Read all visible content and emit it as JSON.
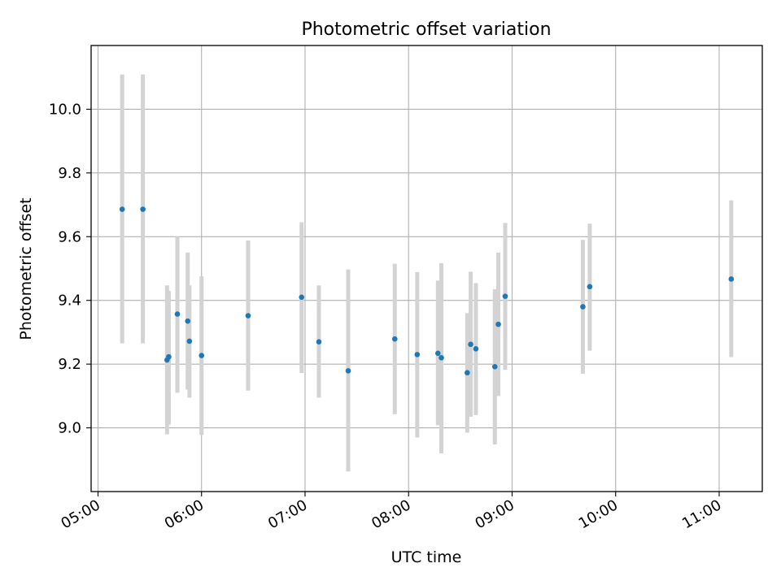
{
  "chart_data": {
    "type": "scatter",
    "title": "Photometric offset variation",
    "xlabel": "UTC time",
    "ylabel": "Photometric offset",
    "grid": true,
    "x_type": "time",
    "xlim": [
      "04:56",
      "11:25"
    ],
    "ylim": [
      8.8,
      10.2
    ],
    "x_ticks": [
      "05:00",
      "06:00",
      "07:00",
      "08:00",
      "09:00",
      "10:00",
      "11:00"
    ],
    "y_ticks": [
      "9.0",
      "9.2",
      "9.4",
      "9.6",
      "9.8",
      "10.0"
    ],
    "colors": {
      "point": "#1f77b4",
      "errorbar": "#d3d3d3",
      "grid": "#b0b0b0"
    },
    "points": [
      {
        "x": "05:14",
        "y": 9.686,
        "low": 9.265,
        "high": 10.109
      },
      {
        "x": "05:26",
        "y": 9.686,
        "low": 9.265,
        "high": 10.109
      },
      {
        "x": "05:40",
        "y": 9.213,
        "low": 8.98,
        "high": 9.447
      },
      {
        "x": "05:41",
        "y": 9.223,
        "low": 9.01,
        "high": 9.43
      },
      {
        "x": "05:46",
        "y": 9.357,
        "low": 9.11,
        "high": 9.6
      },
      {
        "x": "05:52",
        "y": 9.335,
        "low": 9.12,
        "high": 9.55
      },
      {
        "x": "05:53",
        "y": 9.272,
        "low": 9.095,
        "high": 9.447
      },
      {
        "x": "06:00",
        "y": 9.227,
        "low": 8.978,
        "high": 9.476
      },
      {
        "x": "06:27",
        "y": 9.352,
        "low": 9.117,
        "high": 9.588
      },
      {
        "x": "06:58",
        "y": 9.41,
        "low": 9.172,
        "high": 9.645
      },
      {
        "x": "07:08",
        "y": 9.27,
        "low": 9.095,
        "high": 9.447
      },
      {
        "x": "07:25",
        "y": 9.179,
        "low": 8.863,
        "high": 9.497
      },
      {
        "x": "07:52",
        "y": 9.279,
        "low": 9.043,
        "high": 9.515
      },
      {
        "x": "08:05",
        "y": 9.23,
        "low": 8.97,
        "high": 9.489
      },
      {
        "x": "08:17",
        "y": 9.234,
        "low": 9.008,
        "high": 9.462
      },
      {
        "x": "08:19",
        "y": 9.22,
        "low": 8.92,
        "high": 9.517
      },
      {
        "x": "08:34",
        "y": 9.173,
        "low": 8.985,
        "high": 9.36
      },
      {
        "x": "08:36",
        "y": 9.262,
        "low": 9.035,
        "high": 9.49
      },
      {
        "x": "08:39",
        "y": 9.248,
        "low": 9.04,
        "high": 9.454
      },
      {
        "x": "08:50",
        "y": 9.192,
        "low": 8.948,
        "high": 9.435
      },
      {
        "x": "08:52",
        "y": 9.325,
        "low": 9.1,
        "high": 9.55
      },
      {
        "x": "08:56",
        "y": 9.413,
        "low": 9.182,
        "high": 9.643
      },
      {
        "x": "09:41",
        "y": 9.38,
        "low": 9.17,
        "high": 9.59
      },
      {
        "x": "09:45",
        "y": 9.443,
        "low": 9.242,
        "high": 9.641
      },
      {
        "x": "11:07",
        "y": 9.467,
        "low": 9.222,
        "high": 9.714
      }
    ]
  }
}
